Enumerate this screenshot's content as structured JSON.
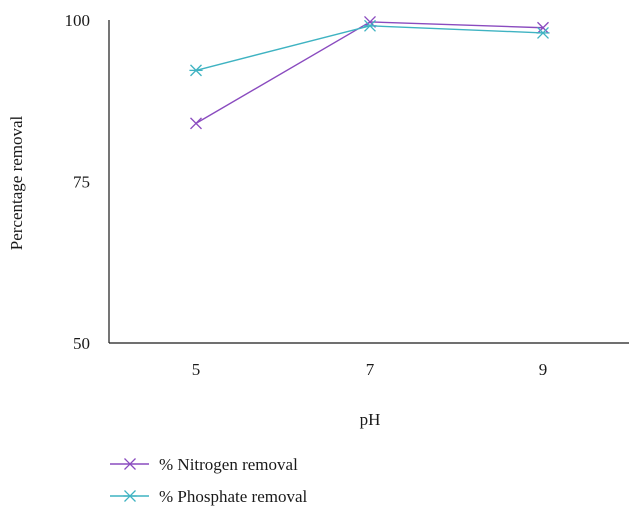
{
  "chart_data": {
    "type": "line",
    "title": "",
    "xlabel": "pH",
    "ylabel": "Percentage removal",
    "categories": [
      "5",
      "7",
      "9"
    ],
    "ylim": [
      50,
      100
    ],
    "yticks": [
      50,
      75,
      100
    ],
    "grid": false,
    "legend_position": "bottom-left",
    "series": [
      {
        "name": "% Nitrogen removal",
        "values": [
          84,
          99.7,
          98.8
        ],
        "color": "#8a4bbf",
        "marker": "x"
      },
      {
        "name": "% Phosphate removal",
        "values": [
          92.2,
          99.1,
          98.0
        ],
        "color": "#3fb3c2",
        "marker": "asterisk"
      }
    ]
  }
}
